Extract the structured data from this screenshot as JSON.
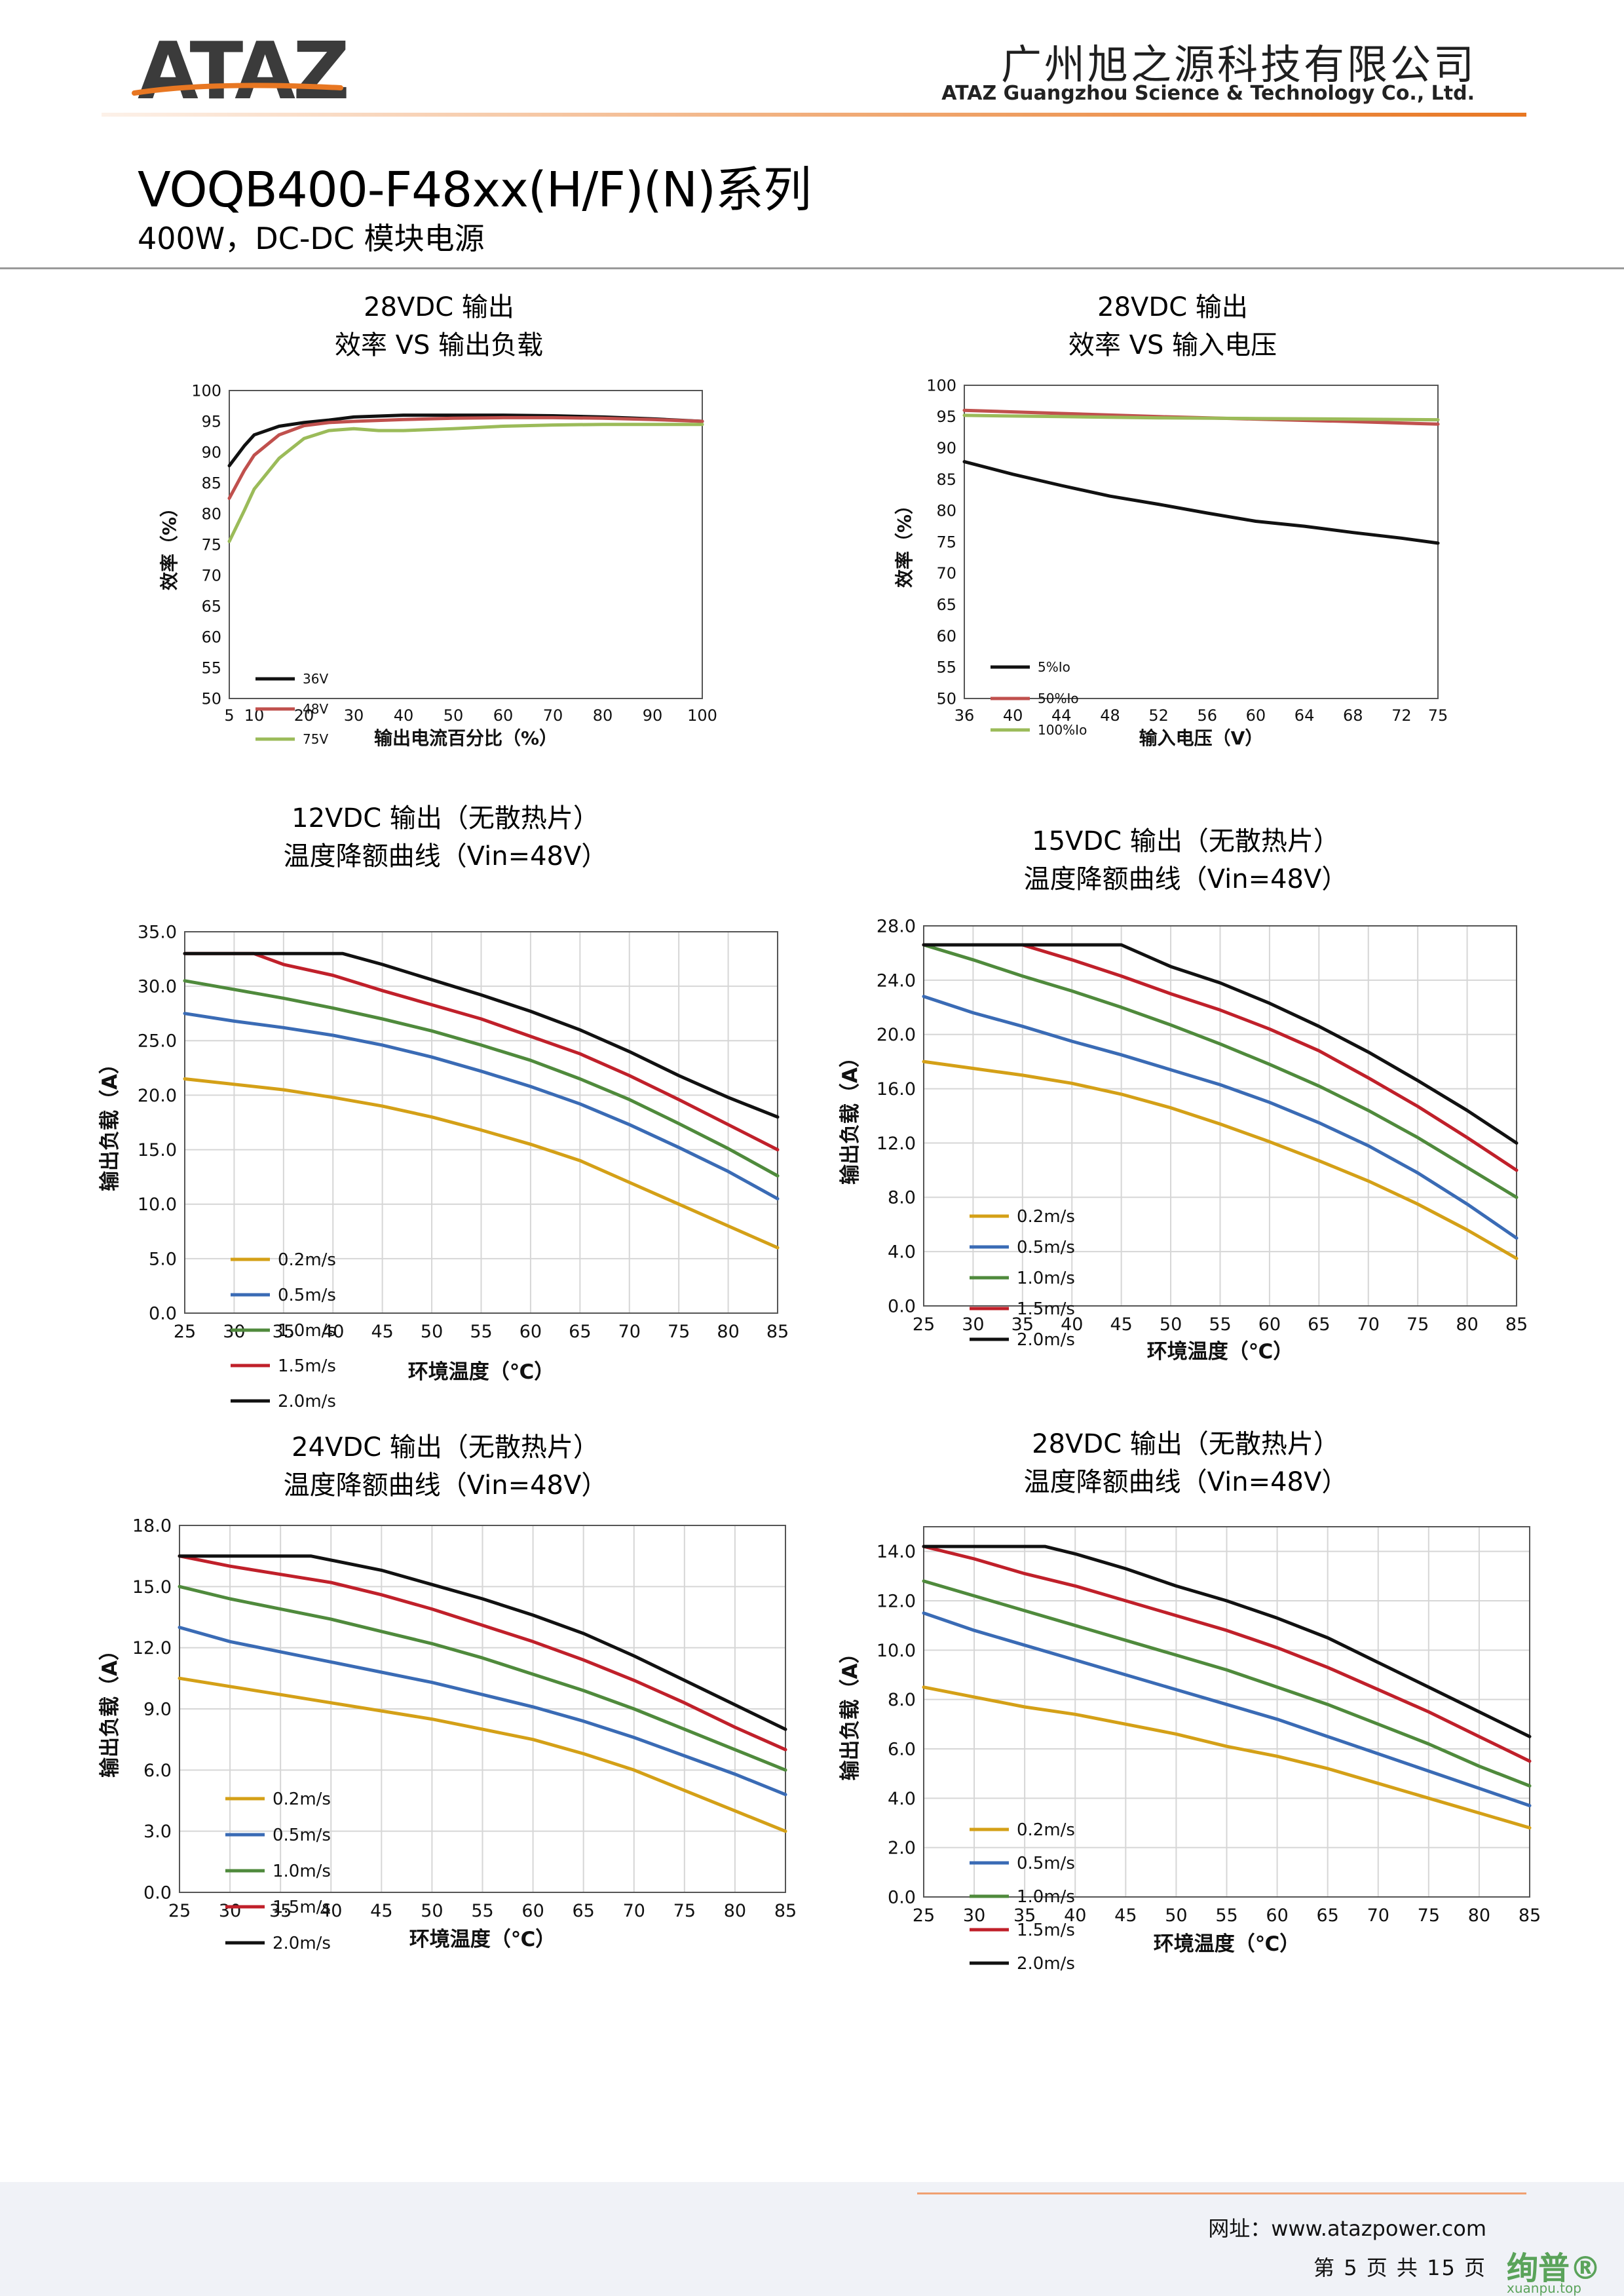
{
  "header": {
    "logo": "ATAZ",
    "company_cn": "广州旭之源科技有限公司",
    "company_en": "ATAZ Guangzhou Science & Technology Co., Ltd.",
    "brand_color": "#e87722",
    "logo_color": "#3b3b3b"
  },
  "series": {
    "title": "VOQB400-F48xx(H/F)(N)系列",
    "subtitle": "400W，DC-DC 模块电源"
  },
  "colors": {
    "black": "#111111",
    "red": "#c0504d",
    "green": "#9bbb59",
    "yellow": "#d4a017",
    "blue": "#3a6bb5",
    "dgreen": "#4f8a3c",
    "dred": "#c0202a"
  },
  "footer": {
    "url": "网址：www.atazpower.com",
    "page": "第 5 页 共 15 页",
    "watermark": "绚普®",
    "watermark_sub": "xuanpu.top"
  },
  "chart_data": [
    {
      "id": "c1",
      "type": "line",
      "title": [
        "28VDC 输出",
        "效率 VS 输出负载"
      ],
      "xlabel": "输出电流百分比（%）",
      "ylabel": "效率（%）",
      "xlim": [
        5,
        100
      ],
      "ylim": [
        50,
        100
      ],
      "xticks": [
        5,
        10,
        20,
        30,
        40,
        50,
        60,
        70,
        80,
        90,
        100
      ],
      "yticks": [
        50,
        55,
        60,
        65,
        70,
        75,
        80,
        85,
        90,
        95,
        100
      ],
      "tick_decimals": 0,
      "grid": false,
      "legend_position": "left",
      "series": [
        {
          "name": "36V",
          "color": "black",
          "x": [
            5,
            8,
            10,
            15,
            20,
            25,
            30,
            40,
            50,
            60,
            70,
            80,
            90,
            100
          ],
          "y": [
            87.8,
            91,
            92.8,
            94.2,
            94.8,
            95.2,
            95.7,
            96,
            96,
            96,
            95.9,
            95.7,
            95.4,
            95
          ]
        },
        {
          "name": "48V",
          "color": "red",
          "x": [
            5,
            8,
            10,
            15,
            20,
            25,
            30,
            40,
            50,
            60,
            70,
            80,
            90,
            100
          ],
          "y": [
            82.5,
            87,
            89.5,
            92.8,
            94.3,
            94.8,
            95,
            95.3,
            95.5,
            95.6,
            95.6,
            95.5,
            95.3,
            95
          ]
        },
        {
          "name": "75V",
          "color": "green",
          "x": [
            5,
            8,
            10,
            15,
            20,
            25,
            30,
            35,
            40,
            50,
            60,
            70,
            80,
            90,
            100
          ],
          "y": [
            75.5,
            80.5,
            84,
            89,
            92.2,
            93.5,
            93.8,
            93.5,
            93.5,
            93.8,
            94.2,
            94.4,
            94.5,
            94.5,
            94.5
          ]
        }
      ]
    },
    {
      "id": "c2",
      "type": "line",
      "title": [
        "28VDC 输出",
        "效率 VS 输入电压"
      ],
      "xlabel": "输入电压（V）",
      "ylabel": "效率（%）",
      "xlim": [
        36,
        75
      ],
      "ylim": [
        50,
        100
      ],
      "xticks": [
        36,
        40,
        44,
        48,
        52,
        56,
        60,
        64,
        68,
        72,
        75
      ],
      "yticks": [
        50,
        55,
        60,
        65,
        70,
        75,
        80,
        85,
        90,
        95,
        100
      ],
      "tick_decimals": 0,
      "grid": false,
      "legend_position": "left",
      "series": [
        {
          "name": "5%Io",
          "color": "black",
          "x": [
            36,
            40,
            44,
            48,
            52,
            56,
            60,
            64,
            68,
            72,
            75
          ],
          "y": [
            87.8,
            85.8,
            84,
            82.3,
            81,
            79.6,
            78.3,
            77.5,
            76.5,
            75.6,
            74.8
          ]
        },
        {
          "name": "50%Io",
          "color": "red",
          "x": [
            36,
            44,
            52,
            60,
            68,
            75
          ],
          "y": [
            96,
            95.5,
            95,
            94.6,
            94.2,
            93.8
          ]
        },
        {
          "name": "100%Io",
          "color": "green",
          "x": [
            36,
            44,
            52,
            60,
            68,
            75
          ],
          "y": [
            95.2,
            95,
            94.8,
            94.7,
            94.6,
            94.5
          ]
        }
      ]
    },
    {
      "id": "c3",
      "type": "line",
      "title": [
        "12VDC 输出（无散热片）",
        "温度降额曲线（Vin=48V）"
      ],
      "xlabel": "环境温度（℃）",
      "ylabel": "输出负载（A）",
      "xlim": [
        25,
        85
      ],
      "ylim": [
        0,
        35
      ],
      "xticks": [
        25,
        30,
        35,
        40,
        45,
        50,
        55,
        60,
        65,
        70,
        75,
        80,
        85
      ],
      "yticks": [
        0,
        5,
        10,
        15,
        20,
        25,
        30,
        35
      ],
      "tick_decimals": 1,
      "grid": true,
      "legend_position": "lower-left",
      "series": [
        {
          "name": "0.2m/s",
          "color": "yellow",
          "x": [
            25,
            30,
            35,
            40,
            45,
            50,
            55,
            60,
            65,
            70,
            75,
            80,
            85
          ],
          "y": [
            21.5,
            21,
            20.5,
            19.8,
            19,
            18,
            16.8,
            15.5,
            14,
            12,
            10,
            8,
            6
          ]
        },
        {
          "name": "0.5m/s",
          "color": "blue",
          "x": [
            25,
            30,
            35,
            40,
            45,
            50,
            55,
            60,
            65,
            70,
            75,
            80,
            85
          ],
          "y": [
            27.5,
            26.8,
            26.2,
            25.5,
            24.6,
            23.5,
            22.2,
            20.8,
            19.2,
            17.3,
            15.2,
            13,
            10.5
          ]
        },
        {
          "name": "1.0m/s",
          "color": "dgreen",
          "x": [
            25,
            30,
            35,
            40,
            45,
            50,
            55,
            60,
            65,
            70,
            75,
            80,
            85
          ],
          "y": [
            30.5,
            29.7,
            28.9,
            28,
            27,
            25.9,
            24.6,
            23.2,
            21.5,
            19.6,
            17.4,
            15.1,
            12.6
          ]
        },
        {
          "name": "1.5m/s",
          "color": "dred",
          "x": [
            25,
            32,
            35,
            40,
            45,
            50,
            55,
            60,
            65,
            70,
            75,
            80,
            85
          ],
          "y": [
            33,
            33,
            32,
            31,
            29.6,
            28.3,
            27,
            25.4,
            23.8,
            21.8,
            19.6,
            17.3,
            15
          ]
        },
        {
          "name": "2.0m/s",
          "color": "black",
          "x": [
            25,
            41,
            45,
            50,
            55,
            60,
            65,
            70,
            75,
            80,
            85
          ],
          "y": [
            33,
            33,
            32,
            30.6,
            29.2,
            27.7,
            26,
            24,
            21.8,
            19.8,
            18
          ]
        }
      ]
    },
    {
      "id": "c4",
      "type": "line",
      "title": [
        "15VDC 输出（无散热片）",
        "温度降额曲线（Vin=48V）"
      ],
      "xlabel": "环境温度（℃）",
      "ylabel": "输出负载（A）",
      "xlim": [
        25,
        85
      ],
      "ylim": [
        0,
        28
      ],
      "xticks": [
        25,
        30,
        35,
        40,
        45,
        50,
        55,
        60,
        65,
        70,
        75,
        80,
        85
      ],
      "yticks": [
        0,
        4,
        8,
        12,
        16,
        20,
        24,
        28
      ],
      "tick_decimals": 1,
      "grid": true,
      "legend_position": "lower-left",
      "series": [
        {
          "name": "0.2m/s",
          "color": "yellow",
          "x": [
            25,
            30,
            35,
            40,
            45,
            50,
            55,
            60,
            65,
            70,
            75,
            80,
            85
          ],
          "y": [
            18,
            17.5,
            17,
            16.4,
            15.6,
            14.6,
            13.4,
            12.1,
            10.7,
            9.2,
            7.5,
            5.6,
            3.5
          ]
        },
        {
          "name": "0.5m/s",
          "color": "blue",
          "x": [
            25,
            30,
            35,
            40,
            45,
            50,
            55,
            60,
            65,
            70,
            75,
            80,
            85
          ],
          "y": [
            22.8,
            21.6,
            20.6,
            19.5,
            18.5,
            17.4,
            16.3,
            15,
            13.5,
            11.8,
            9.8,
            7.5,
            5
          ]
        },
        {
          "name": "1.0m/s",
          "color": "dgreen",
          "x": [
            25,
            30,
            35,
            40,
            45,
            50,
            55,
            60,
            65,
            70,
            75,
            80,
            85
          ],
          "y": [
            26.6,
            25.5,
            24.3,
            23.2,
            22,
            20.7,
            19.3,
            17.8,
            16.2,
            14.4,
            12.4,
            10.2,
            8
          ]
        },
        {
          "name": "1.5m/s",
          "color": "dred",
          "x": [
            25,
            35,
            40,
            45,
            50,
            55,
            60,
            65,
            70,
            75,
            80,
            85
          ],
          "y": [
            26.6,
            26.6,
            25.5,
            24.3,
            23,
            21.8,
            20.4,
            18.8,
            16.8,
            14.7,
            12.4,
            10
          ]
        },
        {
          "name": "2.0m/s",
          "color": "black",
          "x": [
            25,
            45,
            50,
            55,
            60,
            65,
            70,
            75,
            80,
            85
          ],
          "y": [
            26.6,
            26.6,
            25,
            23.8,
            22.3,
            20.6,
            18.7,
            16.6,
            14.4,
            12
          ]
        }
      ]
    },
    {
      "id": "c5",
      "type": "line",
      "title": [
        "24VDC 输出（无散热片）",
        "温度降额曲线（Vin=48V）"
      ],
      "xlabel": "环境温度（℃）",
      "ylabel": "输出负载（A）",
      "xlim": [
        25,
        85
      ],
      "ylim": [
        0,
        18
      ],
      "xticks": [
        25,
        30,
        35,
        40,
        45,
        50,
        55,
        60,
        65,
        70,
        75,
        80,
        85
      ],
      "yticks": [
        0,
        3,
        6,
        9,
        12,
        15,
        18
      ],
      "tick_decimals": 1,
      "grid": true,
      "legend_position": "lower-left",
      "series": [
        {
          "name": "0.2m/s",
          "color": "yellow",
          "x": [
            25,
            30,
            35,
            40,
            45,
            50,
            55,
            60,
            65,
            70,
            75,
            80,
            85
          ],
          "y": [
            10.5,
            10.1,
            9.7,
            9.3,
            8.9,
            8.5,
            8,
            7.5,
            6.8,
            6,
            5,
            4,
            3
          ]
        },
        {
          "name": "0.5m/s",
          "color": "blue",
          "x": [
            25,
            30,
            35,
            40,
            45,
            50,
            55,
            60,
            65,
            70,
            75,
            80,
            85
          ],
          "y": [
            13,
            12.3,
            11.8,
            11.3,
            10.8,
            10.3,
            9.7,
            9.1,
            8.4,
            7.6,
            6.7,
            5.8,
            4.8
          ]
        },
        {
          "name": "1.0m/s",
          "color": "dgreen",
          "x": [
            25,
            30,
            35,
            40,
            45,
            50,
            55,
            60,
            65,
            70,
            75,
            80,
            85
          ],
          "y": [
            15,
            14.4,
            13.9,
            13.4,
            12.8,
            12.2,
            11.5,
            10.7,
            9.9,
            9,
            8,
            7,
            6
          ]
        },
        {
          "name": "1.5m/s",
          "color": "dred",
          "x": [
            25,
            30,
            35,
            40,
            45,
            50,
            55,
            60,
            65,
            70,
            75,
            80,
            85
          ],
          "y": [
            16.5,
            16,
            15.6,
            15.2,
            14.6,
            13.9,
            13.1,
            12.3,
            11.4,
            10.4,
            9.3,
            8.1,
            7
          ]
        },
        {
          "name": "2.0m/s",
          "color": "black",
          "x": [
            25,
            38,
            45,
            50,
            55,
            60,
            65,
            70,
            75,
            80,
            85
          ],
          "y": [
            16.5,
            16.5,
            15.8,
            15.1,
            14.4,
            13.6,
            12.7,
            11.6,
            10.4,
            9.2,
            8
          ]
        }
      ]
    },
    {
      "id": "c6",
      "type": "line",
      "title": [
        "28VDC 输出（无散热片）",
        "温度降额曲线（Vin=48V）"
      ],
      "xlabel": "环境温度（℃）",
      "ylabel": "输出负载（A）",
      "xlim": [
        25,
        85
      ],
      "ylim": [
        0,
        15
      ],
      "xticks": [
        25,
        30,
        35,
        40,
        45,
        50,
        55,
        60,
        65,
        70,
        75,
        80,
        85
      ],
      "yticks": [
        0,
        2,
        4,
        6,
        8,
        10,
        12,
        14
      ],
      "tick_decimals": 1,
      "grid": true,
      "legend_position": "lower-left",
      "series": [
        {
          "name": "0.2m/s",
          "color": "yellow",
          "x": [
            25,
            30,
            35,
            40,
            45,
            50,
            55,
            60,
            65,
            70,
            75,
            80,
            85
          ],
          "y": [
            8.5,
            8.1,
            7.7,
            7.4,
            7,
            6.6,
            6.1,
            5.7,
            5.2,
            4.6,
            4,
            3.4,
            2.8
          ]
        },
        {
          "name": "0.5m/s",
          "color": "blue",
          "x": [
            25,
            30,
            35,
            40,
            45,
            50,
            55,
            60,
            65,
            70,
            75,
            80,
            85
          ],
          "y": [
            11.5,
            10.8,
            10.2,
            9.6,
            9,
            8.4,
            7.8,
            7.2,
            6.5,
            5.8,
            5.1,
            4.4,
            3.7
          ]
        },
        {
          "name": "1.0m/s",
          "color": "dgreen",
          "x": [
            25,
            30,
            35,
            40,
            45,
            50,
            55,
            60,
            65,
            70,
            75,
            80,
            85
          ],
          "y": [
            12.8,
            12.2,
            11.6,
            11,
            10.4,
            9.8,
            9.2,
            8.5,
            7.8,
            7,
            6.2,
            5.3,
            4.5
          ]
        },
        {
          "name": "1.5m/s",
          "color": "dred",
          "x": [
            25,
            30,
            35,
            40,
            45,
            50,
            55,
            60,
            65,
            70,
            75,
            80,
            85
          ],
          "y": [
            14.2,
            13.7,
            13.1,
            12.6,
            12,
            11.4,
            10.8,
            10.1,
            9.3,
            8.4,
            7.5,
            6.5,
            5.5
          ]
        },
        {
          "name": "2.0m/s",
          "color": "black",
          "x": [
            25,
            37,
            40,
            45,
            50,
            55,
            60,
            65,
            70,
            75,
            80,
            85
          ],
          "y": [
            14.2,
            14.2,
            13.9,
            13.3,
            12.6,
            12,
            11.3,
            10.5,
            9.5,
            8.5,
            7.5,
            6.5
          ]
        }
      ]
    }
  ]
}
